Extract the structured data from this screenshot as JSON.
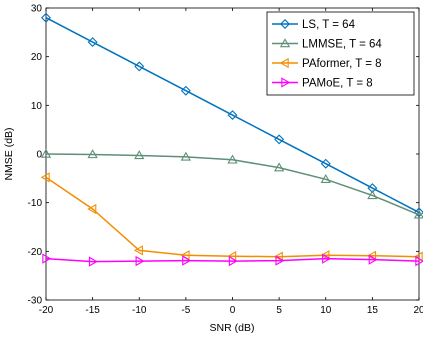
{
  "chart_data": {
    "type": "line",
    "x": [
      -20,
      -15,
      -10,
      -5,
      0,
      5,
      10,
      15,
      20
    ],
    "xlim": [
      -20,
      20
    ],
    "ylim": [
      -30,
      30
    ],
    "xticks": [
      -20,
      -15,
      -10,
      -5,
      0,
      5,
      10,
      15,
      20
    ],
    "yticks": [
      30,
      20,
      10,
      0,
      -10,
      -20,
      -30
    ],
    "xlabel": "SNR (dB)",
    "ylabel": "NMSE (dB)",
    "grid": false,
    "legend_position": "top-right",
    "series": [
      {
        "name": "LS, T = 64",
        "color": "#0072BD",
        "marker": "diamond",
        "values": [
          28,
          23,
          18,
          13,
          8,
          3,
          -2,
          -7,
          -12
        ]
      },
      {
        "name": "LMMSE, T = 64",
        "color": "#5F8F77",
        "marker": "triangle-up",
        "values": [
          0,
          -0.1,
          -0.3,
          -0.6,
          -1.2,
          -2.8,
          -5.2,
          -8.5,
          -12.5
        ]
      },
      {
        "name": "PAformer, T = 8",
        "color": "#F28E00",
        "marker": "triangle-left",
        "values": [
          -4.8,
          -11.3,
          -19.8,
          -20.8,
          -21.0,
          -21.1,
          -20.8,
          -20.9,
          -21.1
        ]
      },
      {
        "name": "PAMoE, T = 8",
        "color": "#FF00FF",
        "marker": "triangle-right",
        "values": [
          -21.5,
          -22.1,
          -22.0,
          -21.9,
          -22.0,
          -21.9,
          -21.5,
          -21.7,
          -22.0
        ]
      }
    ]
  }
}
